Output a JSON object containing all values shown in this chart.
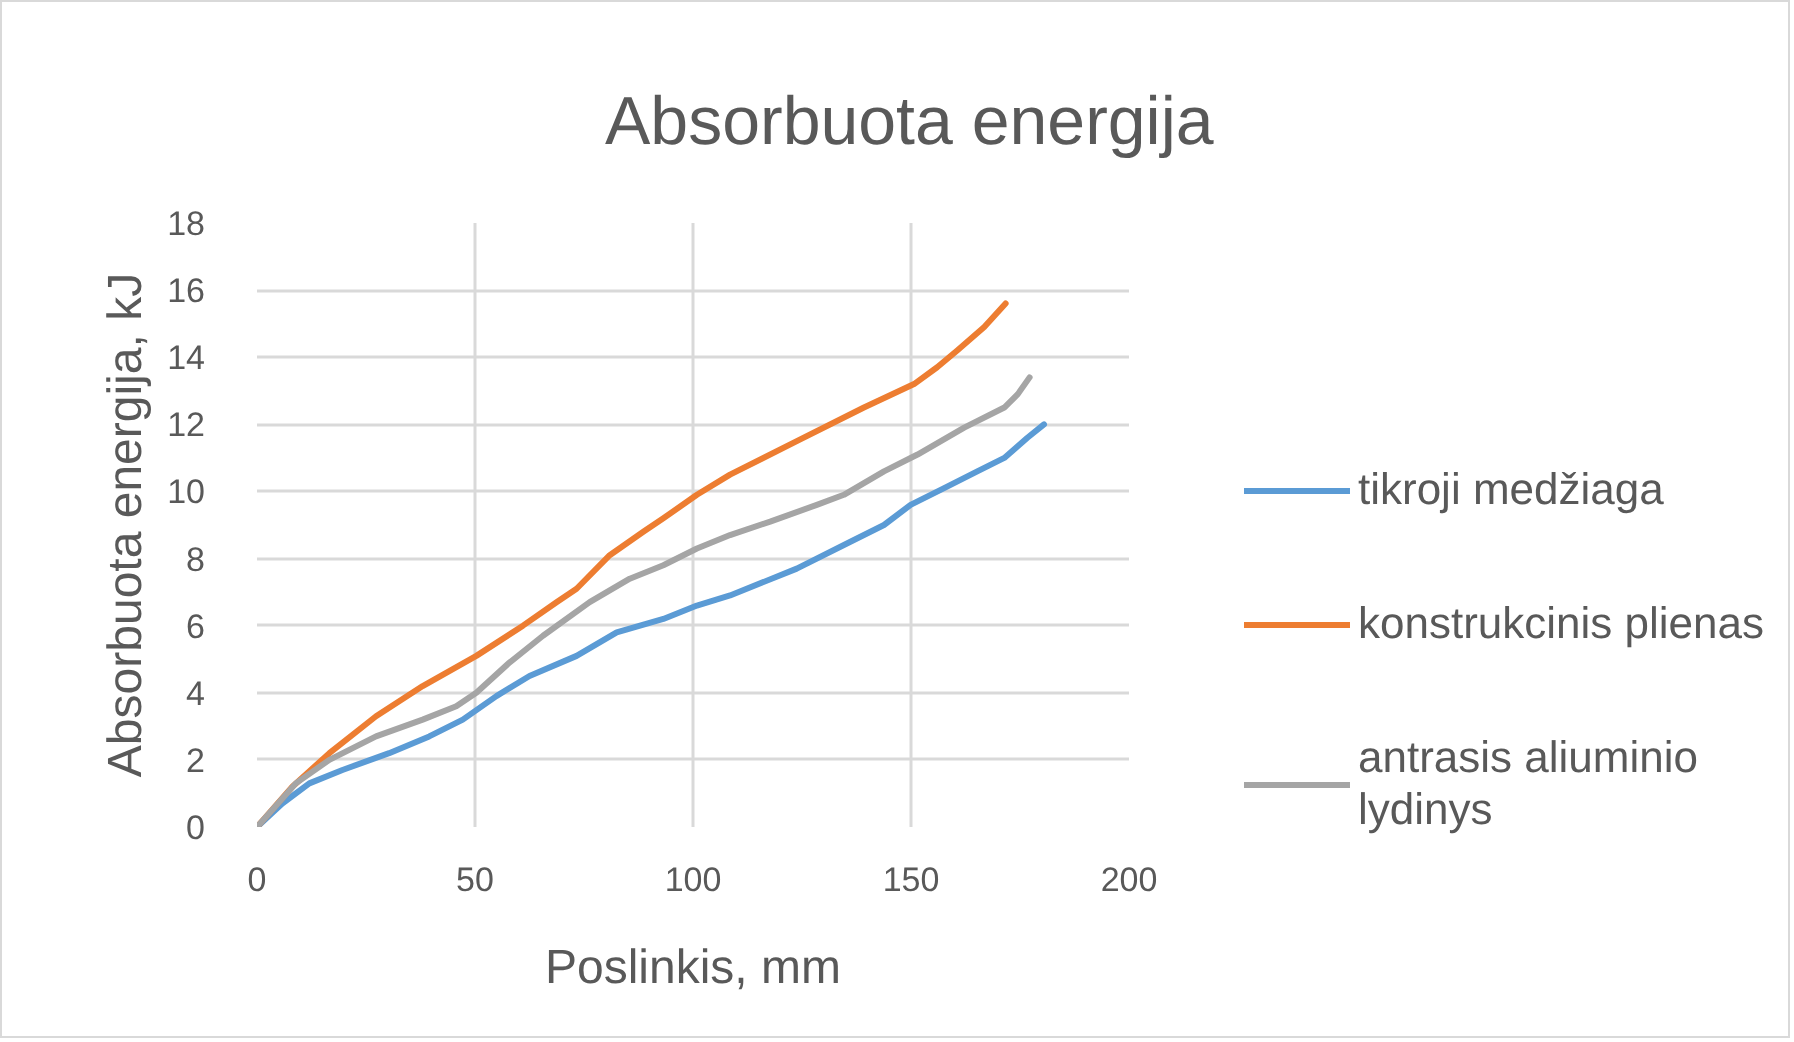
{
  "chart_data": {
    "type": "line",
    "title": "Absorbuota energija",
    "xlabel": "Poslinkis, mm",
    "ylabel": "Absorbuota energija, kJ",
    "xlim": [
      0,
      200
    ],
    "ylim": [
      0,
      18
    ],
    "xticks": [
      0,
      50,
      100,
      150,
      200
    ],
    "yticks": [
      0,
      2,
      4,
      6,
      8,
      10,
      12,
      14,
      16,
      18
    ],
    "grid": true,
    "legend": "right",
    "marker": "none",
    "line_style": "solid",
    "series": [
      {
        "name": "tikroji medžiaga",
        "color": "#5b9bd5",
        "x": [
          0,
          5.8,
          12,
          19.6,
          30.3,
          39.5,
          47.2,
          54.9,
          62.5,
          73.3,
          82.5,
          93.2,
          100.9,
          108.5,
          123.8,
          136.1,
          143.8,
          149.9,
          157.6,
          165.2,
          171.4,
          176.7,
          180.5
        ],
        "values": [
          0,
          0.7,
          1.3,
          1.7,
          2.2,
          2.7,
          3.2,
          3.9,
          4.5,
          5.1,
          5.8,
          6.2,
          6.6,
          6.9,
          7.7,
          8.5,
          9,
          9.6,
          10.1,
          10.6,
          11,
          11.6,
          12
        ]
      },
      {
        "name": "konstrukcinis plienas",
        "color": "#ed7d31",
        "x": [
          0,
          8.1,
          16.6,
          27.3,
          38,
          50.3,
          61,
          68.7,
          73.3,
          80.9,
          88.6,
          93.2,
          100.9,
          108.5,
          123.8,
          139.2,
          150.7,
          156,
          160.6,
          166.8,
          171.7
        ],
        "values": [
          0,
          1.2,
          2.2,
          3.3,
          4.2,
          5.1,
          6,
          6.7,
          7.1,
          8.1,
          8.8,
          9.2,
          9.9,
          10.5,
          11.5,
          12.5,
          13.2,
          13.7,
          14.2,
          14.9,
          15.6
        ]
      },
      {
        "name": "antrasis aliuminio lydinys",
        "color": "#a5a5a5",
        "x": [
          0,
          8.9,
          16.6,
          27.3,
          38,
          45.7,
          50.3,
          57.9,
          65.6,
          76.3,
          85.5,
          93.2,
          100.9,
          108.5,
          117.7,
          128.4,
          134.6,
          143.8,
          151.5,
          162.2,
          171.4,
          174.5,
          177.2
        ],
        "values": [
          0,
          1.3,
          2,
          2.7,
          3.2,
          3.6,
          4,
          4.9,
          5.7,
          6.7,
          7.4,
          7.8,
          8.3,
          8.7,
          9.1,
          9.6,
          9.9,
          10.6,
          11.1,
          11.9,
          12.5,
          12.9,
          13.4
        ]
      }
    ]
  }
}
